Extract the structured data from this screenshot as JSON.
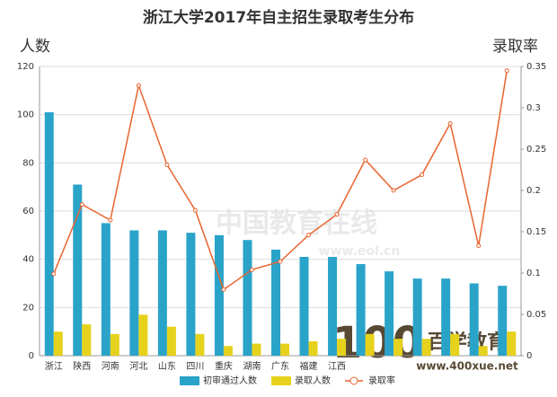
{
  "chart_data": {
    "type": "bar-line",
    "title": "浙江大学2017年自主招生录取考生分布",
    "y_label": "人数",
    "y2_label": "录取率",
    "categories": [
      "浙江",
      "陕西",
      "河南",
      "河北",
      "山东",
      "四川",
      "重庆",
      "湖南",
      "广东",
      "福建",
      "江西",
      null,
      null,
      null,
      null,
      null,
      null
    ],
    "series": [
      {
        "name": "初审通过人数",
        "color": "#2aa3c9",
        "kind": "bar",
        "values": [
          101,
          71,
          55,
          52,
          52,
          51,
          50,
          48,
          44,
          41,
          41,
          38,
          35,
          32,
          32,
          30,
          29
        ]
      },
      {
        "name": "录取人数",
        "color": "#e6d21c",
        "kind": "bar",
        "values": [
          10,
          13,
          9,
          17,
          12,
          9,
          4,
          5,
          5,
          6,
          7,
          9,
          7,
          7,
          9,
          4,
          10
        ]
      },
      {
        "name": "录取率",
        "color": "#e8642f",
        "kind": "line",
        "axis": "y2",
        "values": [
          0.099,
          0.183,
          0.164,
          0.327,
          0.231,
          0.176,
          0.08,
          0.104,
          0.114,
          0.146,
          0.171,
          0.237,
          0.2,
          0.219,
          0.281,
          0.133,
          0.345
        ]
      }
    ],
    "ylim": [
      0,
      120
    ],
    "yticks": [
      0,
      20,
      40,
      60,
      80,
      100,
      120
    ],
    "y2lim": [
      0,
      0.35
    ],
    "y2ticks": [
      0,
      0.05,
      0.1,
      0.15,
      0.2,
      0.25,
      0.3,
      0.35
    ],
    "grid": true,
    "legend": "bottom",
    "watermarks": [
      "中国教育在线",
      "www.eol.cn",
      "100",
      "百学教育",
      "www.400xue.net"
    ]
  }
}
